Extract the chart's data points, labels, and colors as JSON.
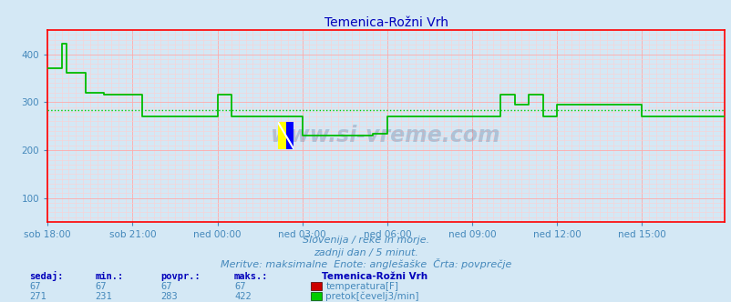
{
  "title": "Temenica-Rožni Vrh",
  "bg_color": "#d4e8f5",
  "plot_bg_color": "#d4e8f5",
  "title_color": "#0000bb",
  "title_fontsize": 10,
  "xlim": [
    0,
    287
  ],
  "ylim": [
    50,
    450
  ],
  "yticks": [
    100,
    200,
    300,
    400
  ],
  "xtick_labels": [
    "sob 18:00",
    "sob 21:00",
    "ned 00:00",
    "ned 03:00",
    "ned 06:00",
    "ned 09:00",
    "ned 12:00",
    "ned 15:00"
  ],
  "xtick_positions": [
    0,
    36,
    72,
    108,
    144,
    180,
    216,
    252
  ],
  "grid_color_major": "#ffaaaa",
  "grid_color_minor": "#ffd0d0",
  "avg_line_color": "#00cc00",
  "avg_line_value": 283,
  "flow_line_color": "#00bb00",
  "axis_color": "#ff0000",
  "tick_color": "#4488bb",
  "label_color": "#4488bb",
  "watermark": "www.si-vreme.com",
  "footer_line1": "Slovenija / reke in morje.",
  "footer_line2": "zadnji dan / 5 minut.",
  "footer_line3": "Meritve: maksimalne  Enote: anglešaške  Črta: povprečje",
  "footer_color": "#4488bb",
  "table_headers": [
    "sedaj:",
    "min.:",
    "povpr.:",
    "maks.:"
  ],
  "table_header_color": "#0000bb",
  "table_values_temp": [
    67,
    67,
    67,
    67
  ],
  "table_values_flow": [
    271,
    231,
    283,
    422
  ],
  "table_value_color": "#4488bb",
  "legend_title": "Temenica-Rožni Vrh",
  "legend_entries": [
    "temperatura[F]",
    "pretok[čevelj3/min]"
  ],
  "legend_colors": [
    "#cc0000",
    "#00cc00"
  ],
  "flow_segments": [
    {
      "x_start": 0,
      "x_end": 6,
      "y": 370
    },
    {
      "x_start": 6,
      "x_end": 8,
      "y": 422
    },
    {
      "x_start": 8,
      "x_end": 16,
      "y": 362
    },
    {
      "x_start": 16,
      "x_end": 24,
      "y": 320
    },
    {
      "x_start": 24,
      "x_end": 40,
      "y": 315
    },
    {
      "x_start": 40,
      "x_end": 72,
      "y": 271
    },
    {
      "x_start": 72,
      "x_end": 78,
      "y": 315
    },
    {
      "x_start": 78,
      "x_end": 96,
      "y": 271
    },
    {
      "x_start": 96,
      "x_end": 108,
      "y": 271
    },
    {
      "x_start": 108,
      "x_end": 138,
      "y": 231
    },
    {
      "x_start": 138,
      "x_end": 144,
      "y": 235
    },
    {
      "x_start": 144,
      "x_end": 180,
      "y": 271
    },
    {
      "x_start": 180,
      "x_end": 192,
      "y": 271
    },
    {
      "x_start": 192,
      "x_end": 198,
      "y": 316
    },
    {
      "x_start": 198,
      "x_end": 204,
      "y": 295
    },
    {
      "x_start": 204,
      "x_end": 210,
      "y": 316
    },
    {
      "x_start": 210,
      "x_end": 216,
      "y": 271
    },
    {
      "x_start": 216,
      "x_end": 222,
      "y": 295
    },
    {
      "x_start": 222,
      "x_end": 252,
      "y": 295
    },
    {
      "x_start": 252,
      "x_end": 258,
      "y": 271
    },
    {
      "x_start": 258,
      "x_end": 287,
      "y": 271
    }
  ]
}
